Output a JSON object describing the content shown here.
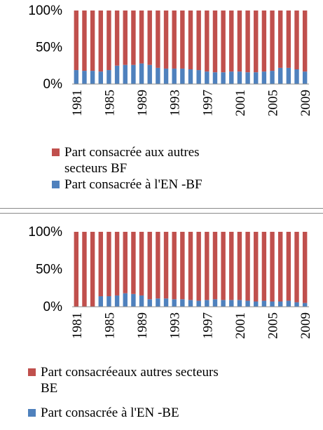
{
  "chart_data": [
    {
      "type": "bar",
      "stacked": true,
      "percent": true,
      "title": "",
      "xlabel": "",
      "ylabel": "",
      "ylim": [
        0,
        100
      ],
      "yticks": [
        "100%",
        "50%",
        "0%"
      ],
      "xtick_labels": [
        "1981",
        "1985",
        "1989",
        "1993",
        "1997",
        "2001",
        "2005",
        "2009"
      ],
      "categories": [
        "1981",
        "1982",
        "1983",
        "1984",
        "1985",
        "1986",
        "1987",
        "1988",
        "1989",
        "1990",
        "1991",
        "1992",
        "1993",
        "1994",
        "1995",
        "1996",
        "1997",
        "1998",
        "1999",
        "2000",
        "2001",
        "2002",
        "2003",
        "2004",
        "2005",
        "2006",
        "2007",
        "2008",
        "2009"
      ],
      "series": [
        {
          "name": "Part consacrée à l'EN -BF",
          "color": "#4f81bd",
          "values": [
            19,
            18,
            18,
            17,
            19,
            25,
            26,
            26,
            28,
            26,
            22,
            21,
            21,
            21,
            20,
            19,
            17,
            16,
            16,
            17,
            17,
            16,
            16,
            17,
            18,
            22,
            22,
            20,
            17
          ]
        },
        {
          "name": "Part consacrée aux autres secteurs  BF",
          "color": "#c0504d",
          "values": [
            81,
            82,
            82,
            83,
            81,
            75,
            74,
            74,
            72,
            74,
            78,
            79,
            79,
            79,
            80,
            81,
            83,
            84,
            84,
            83,
            83,
            84,
            84,
            83,
            82,
            78,
            78,
            80,
            83
          ]
        }
      ],
      "legend": "bottom",
      "grid": false
    },
    {
      "type": "bar",
      "stacked": true,
      "percent": true,
      "title": "",
      "xlabel": "",
      "ylabel": "",
      "ylim": [
        0,
        100
      ],
      "yticks": [
        "100%",
        "50%",
        "0%"
      ],
      "xtick_labels": [
        "1981",
        "1985",
        "1989",
        "1993",
        "1997",
        "2001",
        "2005",
        "2009"
      ],
      "categories": [
        "1981",
        "1982",
        "1983",
        "1984",
        "1985",
        "1986",
        "1987",
        "1988",
        "1989",
        "1990",
        "1991",
        "1992",
        "1993",
        "1994",
        "1995",
        "1996",
        "1997",
        "1998",
        "1999",
        "2000",
        "2001",
        "2002",
        "2003",
        "2004",
        "2005",
        "2006",
        "2007",
        "2008",
        "2009"
      ],
      "series": [
        {
          "name": "Part consacrée à l'EN -BE",
          "color": "#4f81bd",
          "values": [
            0,
            0,
            0,
            14,
            14,
            15,
            18,
            17,
            15,
            10,
            11,
            11,
            10,
            10,
            9,
            8,
            9,
            10,
            9,
            9,
            9,
            8,
            7,
            8,
            7,
            7,
            8,
            6,
            5
          ]
        },
        {
          "name": "Part consacréeaux autres secteurs BE",
          "color": "#c0504d",
          "values": [
            100,
            100,
            100,
            86,
            86,
            85,
            82,
            83,
            85,
            90,
            89,
            89,
            90,
            90,
            91,
            92,
            91,
            90,
            91,
            91,
            91,
            92,
            93,
            92,
            93,
            93,
            92,
            94,
            95
          ]
        }
      ],
      "legend": "bottom",
      "grid": false
    }
  ],
  "legends": [
    {
      "others_line1": "Part consacrée aux autres",
      "others_line2": "secteurs  BF",
      "en": "Part consacrée à l'EN -BF"
    },
    {
      "others_line1": "Part consacréeaux autres secteurs",
      "others_line2": "BE",
      "en": "Part consacrée à l'EN -BE"
    }
  ]
}
